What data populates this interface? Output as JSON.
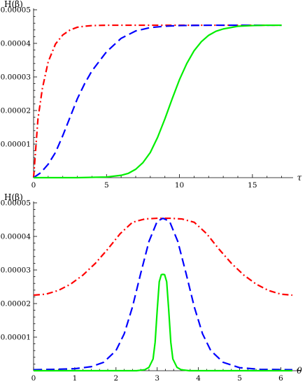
{
  "chart_data": [
    {
      "type": "line",
      "ylabel": "H(β)",
      "xlabel": "τ",
      "xlim": [
        0,
        17.5
      ],
      "ylim": [
        0,
        5e-05
      ],
      "xticks": [
        0,
        5,
        10,
        15
      ],
      "xtick_labels": [
        "0",
        "5",
        "10",
        "15"
      ],
      "yticks": [
        1e-05,
        2e-05,
        3e-05,
        4e-05,
        5e-05
      ],
      "ytick_labels": [
        "0.00001",
        "0.00002",
        "0.00003",
        "0.00004",
        "0.00005"
      ],
      "grid": false,
      "series": [
        {
          "color": "#ff0000",
          "dash": "dash-dot",
          "x": [
            0,
            0.3,
            0.6,
            1,
            1.5,
            2,
            2.5,
            3,
            3.5,
            4,
            5,
            6,
            8,
            10,
            12,
            14,
            17
          ],
          "y": [
            0,
            1.75e-05,
            2.65e-05,
            3.45e-05,
            3.98e-05,
            4.25e-05,
            4.4e-05,
            4.48e-05,
            4.51e-05,
            4.53e-05,
            4.54e-05,
            4.54e-05,
            4.54e-05,
            4.54e-05,
            4.54e-05,
            4.54e-05,
            4.54e-05
          ]
        },
        {
          "color": "#0000ff",
          "dash": "dashed",
          "x": [
            0,
            0.5,
            1,
            1.5,
            2,
            2.5,
            3,
            3.5,
            4,
            5,
            6,
            7,
            8,
            9,
            10,
            12,
            14,
            17
          ],
          "y": [
            0,
            1.5e-06,
            4e-06,
            7.5e-06,
            1.25e-05,
            1.8e-05,
            2.35e-05,
            2.8e-05,
            3.18e-05,
            3.75e-05,
            4.15e-05,
            4.37e-05,
            4.47e-05,
            4.51e-05,
            4.53e-05,
            4.54e-05,
            4.54e-05,
            4.54e-05
          ]
        },
        {
          "color": "#00ee00",
          "dash": "solid",
          "x": [
            0,
            3,
            5,
            6,
            6.5,
            7,
            7.5,
            8,
            8.5,
            9,
            9.5,
            10,
            10.5,
            11,
            11.5,
            12,
            12.5,
            13,
            14,
            15,
            16,
            17
          ],
          "y": [
            0,
            0,
            2e-07,
            7e-07,
            1.3e-06,
            2.5e-06,
            4.5e-06,
            7.5e-06,
            1.2e-05,
            1.75e-05,
            2.35e-05,
            2.92e-05,
            3.4e-05,
            3.78e-05,
            4.05e-05,
            4.24e-05,
            4.36e-05,
            4.43e-05,
            4.51e-05,
            4.53e-05,
            4.54e-05,
            4.54e-05
          ]
        }
      ]
    },
    {
      "type": "line",
      "ylabel": "H(β)",
      "xlabel": "θ",
      "xlim": [
        0,
        6.4
      ],
      "ylim": [
        0,
        5e-05
      ],
      "xticks": [
        0,
        1,
        2,
        3,
        4,
        5,
        6
      ],
      "xtick_labels": [
        "0",
        "1",
        "2",
        "3",
        "4",
        "5",
        "6"
      ],
      "yticks": [
        1e-05,
        2e-05,
        3e-05,
        4e-05,
        5e-05
      ],
      "ytick_labels": [
        "0.00001",
        "0.00002",
        "0.00003",
        "0.00004",
        "0.00005"
      ],
      "grid": false,
      "series": [
        {
          "color": "#ff0000",
          "dash": "dash-dot",
          "x": [
            0,
            0.3,
            0.6,
            0.9,
            1.2,
            1.5,
            1.8,
            2.1,
            2.4,
            2.7,
            3.0,
            3.14,
            3.3,
            3.6,
            3.9,
            4.2,
            4.5,
            4.8,
            5.1,
            5.4,
            5.7,
            6.0,
            6.28
          ],
          "y": [
            2.25e-05,
            2.28e-05,
            2.39e-05,
            2.58e-05,
            2.85e-05,
            3.2e-05,
            3.62e-05,
            4.08e-05,
            4.42e-05,
            4.52e-05,
            4.54e-05,
            4.54e-05,
            4.54e-05,
            4.52e-05,
            4.42e-05,
            4.08e-05,
            3.62e-05,
            3.2e-05,
            2.85e-05,
            2.58e-05,
            2.39e-05,
            2.28e-05,
            2.25e-05
          ]
        },
        {
          "color": "#0000ff",
          "dash": "dashed",
          "x": [
            0,
            0.5,
            1.0,
            1.4,
            1.7,
            2.0,
            2.2,
            2.4,
            2.6,
            2.8,
            3.0,
            3.14,
            3.3,
            3.5,
            3.7,
            3.9,
            4.1,
            4.3,
            4.6,
            5.0,
            5.5,
            6.28
          ],
          "y": [
            3e-07,
            4e-07,
            6e-07,
            1.2e-06,
            2.5e-06,
            6e-06,
            1.1e-05,
            1.9e-05,
            2.9e-05,
            3.85e-05,
            4.45e-05,
            4.54e-05,
            4.45e-05,
            3.85e-05,
            2.9e-05,
            1.9e-05,
            1.1e-05,
            6e-06,
            2.5e-06,
            9e-07,
            4e-07,
            3e-07
          ]
        },
        {
          "color": "#00ee00",
          "dash": "solid",
          "x": [
            0,
            2.5,
            2.7,
            2.8,
            2.9,
            2.95,
            3.0,
            3.05,
            3.1,
            3.14,
            3.18,
            3.23,
            3.28,
            3.33,
            3.38,
            3.48,
            3.58,
            3.78,
            6.28
          ],
          "y": [
            0,
            0,
            3e-07,
            1e-06,
            3.5e-06,
            8.5e-06,
            1.8e-05,
            2.65e-05,
            2.86e-05,
            2.87e-05,
            2.86e-05,
            2.65e-05,
            1.8e-05,
            8.5e-06,
            3.5e-06,
            1e-06,
            3e-07,
            0,
            0
          ]
        }
      ]
    }
  ]
}
